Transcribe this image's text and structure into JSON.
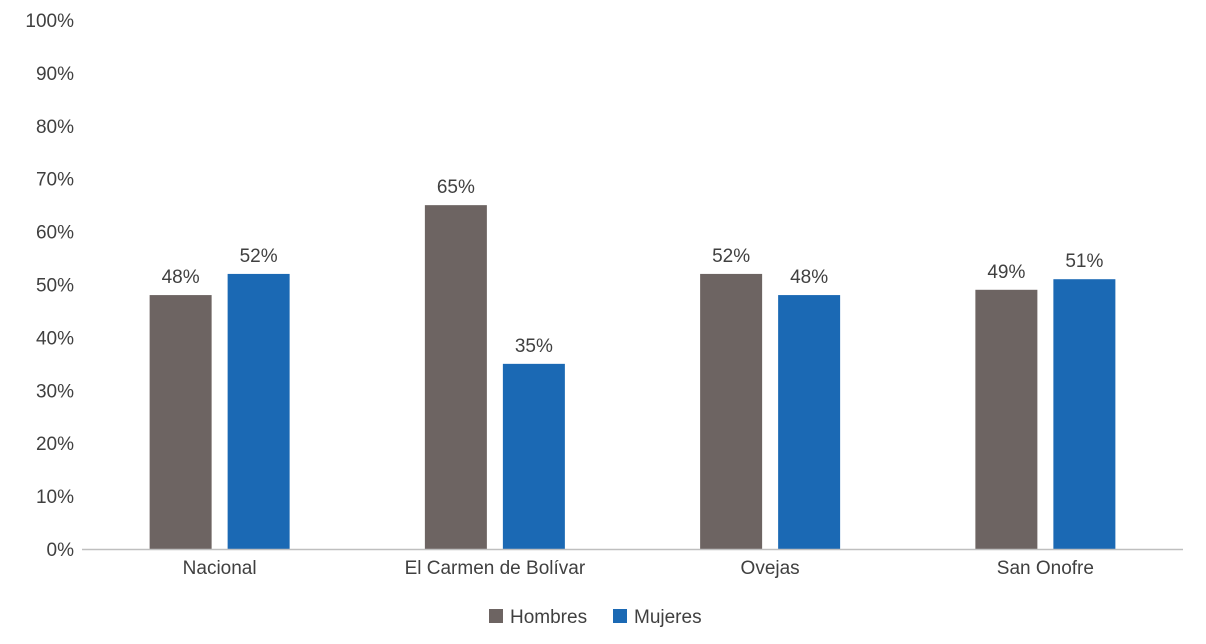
{
  "chart_data": {
    "type": "bar",
    "categories": [
      "Nacional",
      "El Carmen de Bolívar",
      "Ovejas",
      "San Onofre"
    ],
    "series": [
      {
        "name": "Hombres",
        "color": "#6d6462",
        "values": [
          48,
          65,
          52,
          49
        ],
        "labels": [
          "48%",
          "65%",
          "52%",
          "49%"
        ]
      },
      {
        "name": "Mujeres",
        "color": "#1b69b4",
        "values": [
          52,
          35,
          48,
          51
        ],
        "labels": [
          "52%",
          "35%",
          "48%",
          "51%"
        ]
      }
    ],
    "ylim": [
      0,
      100
    ],
    "yticks": [
      0,
      10,
      20,
      30,
      40,
      50,
      60,
      70,
      80,
      90,
      100
    ],
    "ytick_labels": [
      "0%",
      "10%",
      "20%",
      "30%",
      "40%",
      "50%",
      "60%",
      "70%",
      "80%",
      "90%",
      "100%"
    ],
    "grid": false,
    "legend": "bottom-center",
    "title": "",
    "xlabel": "",
    "ylabel": "",
    "axis_color": "#bfbfbf",
    "text_color": "#404040"
  }
}
